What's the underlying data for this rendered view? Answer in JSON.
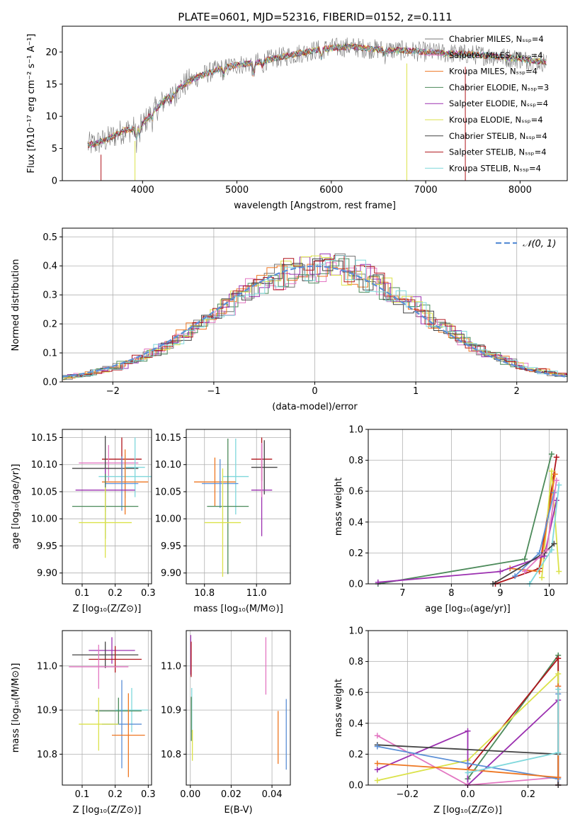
{
  "figure_title": "PLATE=0601, MJD=52316, FIBERID=0152, z=0.111",
  "chart_data": [
    {
      "id": "spectrum",
      "type": "line",
      "title": "PLATE=0601, MJD=52316, FIBERID=0152, z=0.111",
      "xlabel": "wavelength [Angstrom, rest frame]",
      "ylabel": "Flux [fλ10⁻¹⁷ erg cm⁻² s⁻¹ A⁻¹]",
      "xlim": [
        3150,
        8500
      ],
      "ylim": [
        0,
        24
      ],
      "xticks": [
        4000,
        5000,
        6000,
        7000,
        8000
      ],
      "yticks": [
        0,
        5,
        10,
        15,
        20
      ],
      "grid": false,
      "legend_position": "right",
      "continuum": {
        "x": [
          3420,
          3500,
          3600,
          3700,
          3800,
          3900,
          4000,
          4100,
          4200,
          4300,
          4400,
          4500,
          4600,
          4800,
          5000,
          5200,
          5400,
          5600,
          5800,
          6000,
          6200,
          6400,
          6600,
          6800,
          7000,
          7200,
          7400,
          7600,
          7800,
          8000,
          8280
        ],
        "y": [
          5.5,
          5.8,
          6.2,
          7.0,
          7.8,
          8.0,
          8.8,
          10.5,
          12.0,
          13.5,
          14.5,
          15.5,
          16.2,
          17.3,
          18.0,
          18.3,
          19.0,
          19.6,
          20.2,
          20.6,
          20.8,
          20.5,
          20.3,
          20.2,
          20.0,
          19.8,
          19.7,
          19.5,
          19.2,
          18.9,
          18.4
        ]
      },
      "series": [
        {
          "name": "Chabrier MILES, N_SSP=4",
          "color": "#777777"
        },
        {
          "name": "Salpeter MILES, N_SSP=4",
          "color": "#e377c2"
        },
        {
          "name": "Kroupa MILES, N_SSP=4",
          "color": "#ee7722"
        },
        {
          "name": "Chabrier ELODIE, N_SSP=3",
          "color": "#4c8a5a"
        },
        {
          "name": "Salpeter ELODIE, N_SSP=4",
          "color": "#9b30b0"
        },
        {
          "name": "Kroupa ELODIE, N_SSP=4",
          "color": "#dbe24a"
        },
        {
          "name": "Chabrier STELIB, N_SSP=4",
          "color": "#444444"
        },
        {
          "name": "Salpeter STELIB, N_SSP=4",
          "color": "#b0141c"
        },
        {
          "name": "Kroupa STELIB, N_SSP=4",
          "color": "#7fd8dc"
        }
      ]
    },
    {
      "id": "residuals",
      "type": "histogram",
      "xlabel": "(data-model)/error",
      "ylabel": "Normed distribution",
      "xlim": [
        -2.5,
        2.5
      ],
      "ylim": [
        0,
        0.53
      ],
      "xticks": [
        -2,
        -1,
        0,
        1,
        2
      ],
      "yticks": [
        0.0,
        0.1,
        0.2,
        0.3,
        0.4,
        0.5
      ],
      "grid": true,
      "legend_position": "top-right",
      "reference_curve": {
        "name": "𝒩(0, 1)",
        "color": "#5b8fd6"
      },
      "series_colors": [
        "#777777",
        "#e377c2",
        "#ee7722",
        "#4c8a5a",
        "#9b30b0",
        "#dbe24a",
        "#444444",
        "#b0141c",
        "#7fd8dc"
      ]
    },
    {
      "id": "age_vs_Z",
      "type": "scatter",
      "xlabel": "Z [log₁₀(Z/Z⊙)]",
      "ylabel": "age  [log₁₀(age/yr)]",
      "xlim": [
        0.04,
        0.31
      ],
      "ylim": [
        9.88,
        10.165
      ],
      "xticks": [
        0.1,
        0.2,
        0.3
      ],
      "yticks": [
        9.9,
        9.95,
        10.0,
        10.05,
        10.1,
        10.15
      ],
      "grid": true,
      "points": [
        {
          "x": 0.22,
          "y": 10.11,
          "xerr": 0.06,
          "yerr": 0.04,
          "color": "#b0141c"
        },
        {
          "x": 0.18,
          "y": 10.103,
          "xerr": 0.09,
          "yerr": 0.033,
          "color": "#e377c2"
        },
        {
          "x": 0.17,
          "y": 10.093,
          "xerr": 0.1,
          "yerr": 0.06,
          "color": "#444444"
        },
        {
          "x": 0.26,
          "y": 10.095,
          "xerr": 0.03,
          "yerr": 0.055,
          "color": "#7fd8dc"
        },
        {
          "x": 0.23,
          "y": 10.078,
          "xerr": 0.08,
          "yerr": 0.04,
          "color": "#7fd8dc"
        },
        {
          "x": 0.23,
          "y": 10.068,
          "xerr": 0.07,
          "yerr": 0.06,
          "color": "#ee7722"
        },
        {
          "x": 0.22,
          "y": 10.065,
          "xerr": 0.05,
          "yerr": 0.05,
          "color": "#5b8fd6"
        },
        {
          "x": 0.17,
          "y": 10.053,
          "xerr": 0.09,
          "yerr": 0.04,
          "color": "#9b30b0"
        },
        {
          "x": 0.17,
          "y": 10.023,
          "xerr": 0.1,
          "yerr": 0.06,
          "color": "#4c8a5a"
        },
        {
          "x": 0.17,
          "y": 9.993,
          "xerr": 0.08,
          "yerr": 0.065,
          "color": "#dbe24a"
        }
      ]
    },
    {
      "id": "age_vs_mass",
      "type": "scatter",
      "xlabel": "mass [log₁₀(M/M⊙)]",
      "ylabel": "",
      "xlim": [
        10.73,
        11.13
      ],
      "ylim": [
        9.88,
        10.165
      ],
      "xticks": [
        10.8,
        11.0
      ],
      "yticks": [
        9.9,
        9.95,
        10.0,
        10.05,
        10.1,
        10.15
      ],
      "grid": true,
      "points": [
        {
          "x": 11.02,
          "y": 10.11,
          "xerr": 0.04,
          "yerr": 0.04,
          "color": "#b0141c"
        },
        {
          "x": 11.03,
          "y": 10.095,
          "xerr": 0.05,
          "yerr": 0.05,
          "color": "#444444"
        },
        {
          "x": 10.92,
          "y": 10.078,
          "xerr": 0.05,
          "yerr": 0.07,
          "color": "#7fd8dc"
        },
        {
          "x": 10.84,
          "y": 10.068,
          "xerr": 0.08,
          "yerr": 0.045,
          "color": "#ee7722"
        },
        {
          "x": 10.86,
          "y": 10.065,
          "xerr": 0.07,
          "yerr": 0.045,
          "color": "#5b8fd6"
        },
        {
          "x": 11.02,
          "y": 10.053,
          "xerr": 0.04,
          "yerr": 0.085,
          "color": "#9b30b0"
        },
        {
          "x": 10.89,
          "y": 10.023,
          "xerr": 0.08,
          "yerr": 0.125,
          "color": "#4c8a5a"
        },
        {
          "x": 10.87,
          "y": 9.993,
          "xerr": 0.07,
          "yerr": 0.1,
          "color": "#dbe24a"
        },
        {
          "x": 11.02,
          "y": 10.09,
          "xerr": 0.0,
          "yerr": 0.05,
          "color": "#e377c2"
        }
      ]
    },
    {
      "id": "mass_weight_vs_age",
      "type": "line",
      "xlabel": "age  [log₁₀(age/yr)]",
      "ylabel": "mass weight",
      "xlim": [
        6.3,
        10.37
      ],
      "ylim": [
        0,
        1.0
      ],
      "xticks": [
        7,
        8,
        9,
        10
      ],
      "yticks": [
        0.0,
        0.2,
        0.4,
        0.6,
        0.8,
        1.0
      ],
      "grid": true,
      "series": [
        {
          "color": "#4c8a5a",
          "x": [
            6.5,
            9.5,
            10.05
          ],
          "y": [
            0.0,
            0.16,
            0.84
          ]
        },
        {
          "color": "#b0141c",
          "x": [
            8.9,
            9.8,
            10.15
          ],
          "y": [
            0.0,
            0.1,
            0.82
          ]
        },
        {
          "color": "#dbe24a",
          "x": [
            9.85,
            10.05,
            10.2
          ],
          "y": [
            0.04,
            0.73,
            0.08
          ]
        },
        {
          "color": "#ee7722",
          "x": [
            9.2,
            9.8,
            10.12
          ],
          "y": [
            0.1,
            0.08,
            0.71
          ]
        },
        {
          "color": "#9b30b0",
          "x": [
            6.5,
            9.0,
            9.9,
            10.15
          ],
          "y": [
            0.01,
            0.08,
            0.18,
            0.54
          ]
        },
        {
          "color": "#7fd8dc",
          "x": [
            9.6,
            10.05,
            10.2
          ],
          "y": [
            0.0,
            0.22,
            0.64
          ]
        },
        {
          "color": "#5b8fd6",
          "x": [
            9.3,
            9.8,
            10.1
          ],
          "y": [
            0.05,
            0.2,
            0.59
          ]
        },
        {
          "color": "#444444",
          "x": [
            8.85,
            9.9,
            10.1
          ],
          "y": [
            0.0,
            0.2,
            0.26
          ]
        },
        {
          "color": "#e377c2",
          "x": [
            9.5,
            9.95,
            10.15
          ],
          "y": [
            0.08,
            0.22,
            0.67
          ]
        }
      ]
    },
    {
      "id": "mass_vs_Z",
      "type": "scatter",
      "xlabel": "Z [log₁₀(Z/Z⊙)]",
      "ylabel": "mass [log₁₀(M/M⊙)]",
      "xlim": [
        0.04,
        0.31
      ],
      "ylim": [
        10.73,
        11.08
      ],
      "xticks": [
        0.1,
        0.2,
        0.3
      ],
      "yticks": [
        10.8,
        10.9,
        11.0
      ],
      "grid": true,
      "points": [
        {
          "x": 0.19,
          "y": 11.035,
          "xerr": 0.07,
          "yerr": 0.03,
          "color": "#9b30b0"
        },
        {
          "x": 0.17,
          "y": 11.025,
          "xerr": 0.1,
          "yerr": 0.03,
          "color": "#444444"
        },
        {
          "x": 0.2,
          "y": 11.015,
          "xerr": 0.08,
          "yerr": 0.03,
          "color": "#b0141c"
        },
        {
          "x": 0.15,
          "y": 10.998,
          "xerr": 0.09,
          "yerr": 0.05,
          "color": "#e377c2"
        },
        {
          "x": 0.25,
          "y": 10.9,
          "xerr": 0.05,
          "yerr": 0.05,
          "color": "#7fd8dc"
        },
        {
          "x": 0.21,
          "y": 10.898,
          "xerr": 0.07,
          "yerr": 0.03,
          "color": "#4c8a5a"
        },
        {
          "x": 0.22,
          "y": 10.868,
          "xerr": 0.06,
          "yerr": 0.1,
          "color": "#5b8fd6"
        },
        {
          "x": 0.15,
          "y": 10.868,
          "xerr": 0.06,
          "yerr": 0.06,
          "color": "#dbe24a"
        },
        {
          "x": 0.24,
          "y": 10.843,
          "xerr": 0.05,
          "yerr": 0.095,
          "color": "#ee7722"
        }
      ]
    },
    {
      "id": "mass_vs_ebv",
      "type": "scatter",
      "xlabel": "E(B-V)",
      "ylabel": "",
      "xlim": [
        -0.002,
        0.049
      ],
      "ylim": [
        10.73,
        11.08
      ],
      "xticks": [
        0.0,
        0.02,
        0.04
      ],
      "yticks": [
        10.8,
        10.9,
        11.0
      ],
      "grid": true,
      "points": [
        {
          "x": 0.0002,
          "y": 11.025,
          "xerr": 0.0,
          "yerr": 0.045,
          "color": "#9b30b0"
        },
        {
          "x": 0.0004,
          "y": 11.015,
          "xerr": 0.0,
          "yerr": 0.04,
          "color": "#b0141c"
        },
        {
          "x": 0.0007,
          "y": 10.9,
          "xerr": 0.0,
          "yerr": 0.05,
          "color": "#7fd8dc"
        },
        {
          "x": 0.0005,
          "y": 10.88,
          "xerr": 0.0,
          "yerr": 0.05,
          "color": "#4c8a5a"
        },
        {
          "x": 0.001,
          "y": 10.82,
          "xerr": 0.0,
          "yerr": 0.035,
          "color": "#dbe24a"
        },
        {
          "x": 0.037,
          "y": 11.0,
          "xerr": 0.0,
          "yerr": 0.065,
          "color": "#e377c2"
        },
        {
          "x": 0.043,
          "y": 10.838,
          "xerr": 0.0,
          "yerr": 0.06,
          "color": "#ee7722"
        },
        {
          "x": 0.047,
          "y": 10.845,
          "xerr": 0.0,
          "yerr": 0.08,
          "color": "#5b8fd6"
        }
      ]
    },
    {
      "id": "mass_weight_vs_Z",
      "type": "line",
      "xlabel": "Z [log₁₀(Z/Z⊙)]",
      "ylabel": "mass weight",
      "xlim": [
        -0.33,
        0.33
      ],
      "ylim": [
        0,
        1.0
      ],
      "xticks": [
        -0.2,
        0.0,
        0.2
      ],
      "yticks": [
        0.0,
        0.2,
        0.4,
        0.6,
        0.8,
        1.0
      ],
      "grid": true,
      "series": [
        {
          "color": "#4c8a5a",
          "x": [
            0.0,
            0.3,
            0.3
          ],
          "y": [
            0.04,
            0.84,
            0.0
          ]
        },
        {
          "color": "#b0141c",
          "x": [
            0.0,
            0.3,
            0.3
          ],
          "y": [
            0.1,
            0.82,
            0.0
          ]
        },
        {
          "color": "#dbe24a",
          "x": [
            -0.3,
            0.0,
            0.3,
            0.3
          ],
          "y": [
            0.03,
            0.16,
            0.72,
            0.0
          ]
        },
        {
          "color": "#9b30b0",
          "x": [
            -0.3,
            0.0,
            0.0,
            0.3,
            0.3
          ],
          "y": [
            0.1,
            0.35,
            0.0,
            0.55,
            0.0
          ]
        },
        {
          "color": "#e377c2",
          "x": [
            -0.3,
            0.0,
            0.3,
            0.3
          ],
          "y": [
            0.32,
            0.0,
            0.05,
            0.64
          ]
        },
        {
          "color": "#444444",
          "x": [
            -0.3,
            0.3,
            0.3
          ],
          "y": [
            0.26,
            0.2,
            0.0
          ]
        },
        {
          "color": "#5b8fd6",
          "x": [
            -0.3,
            0.0,
            0.3,
            0.3
          ],
          "y": [
            0.25,
            0.14,
            0.04,
            0.59
          ]
        },
        {
          "color": "#ee7722",
          "x": [
            -0.3,
            0.0,
            0.3,
            0.3
          ],
          "y": [
            0.14,
            0.1,
            0.05,
            0.64
          ]
        },
        {
          "color": "#7fd8dc",
          "x": [
            0.0,
            0.3,
            0.3
          ],
          "y": [
            0.08,
            0.21,
            0.62
          ]
        }
      ]
    }
  ]
}
